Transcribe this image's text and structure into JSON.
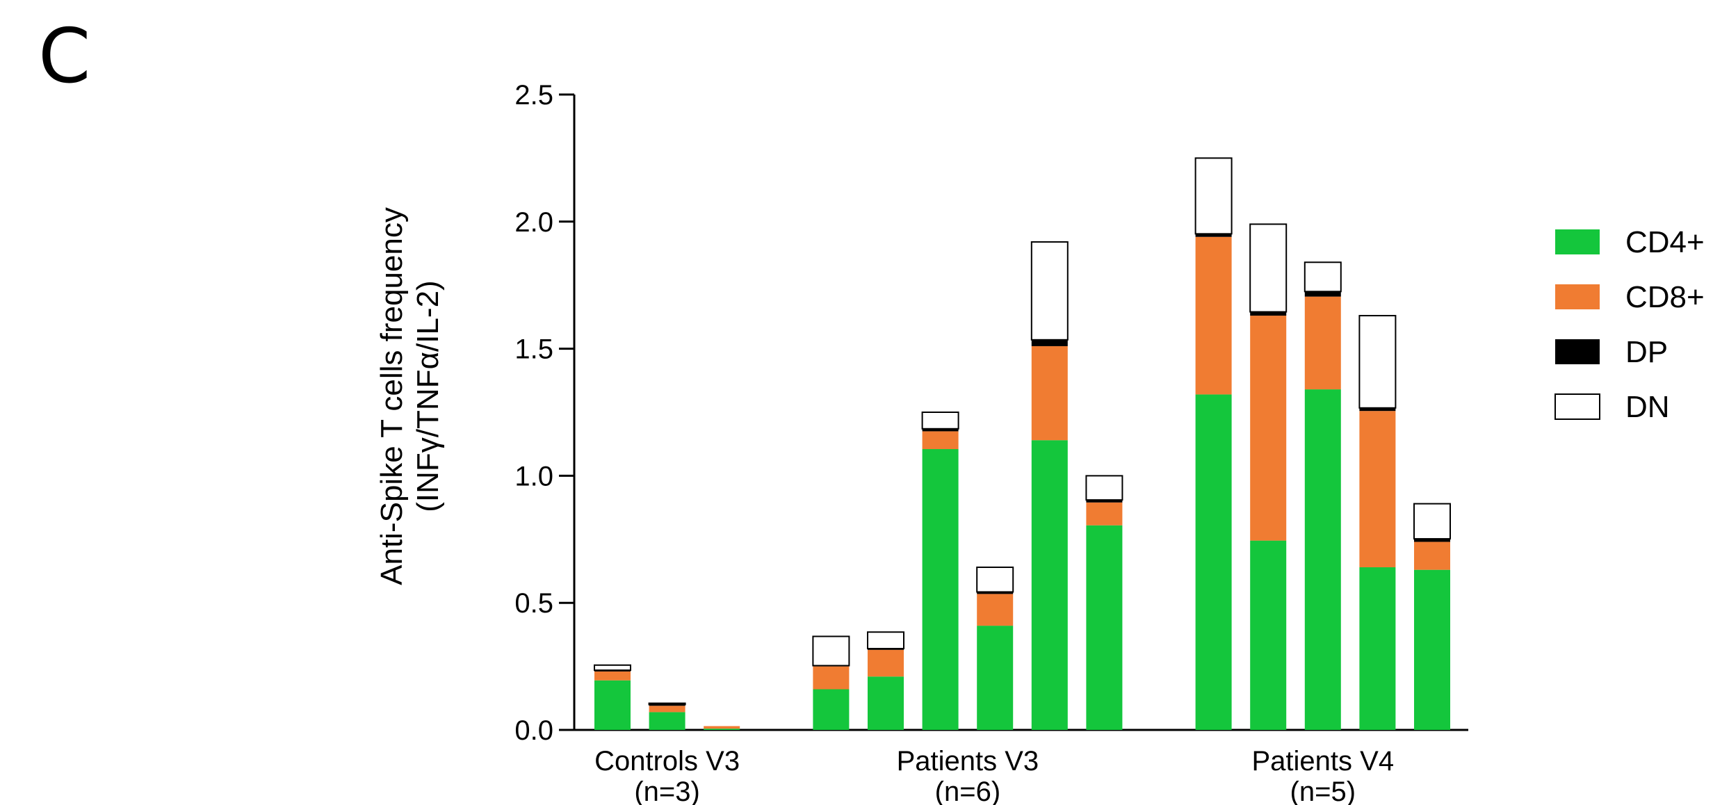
{
  "panel_letter": "C",
  "chart_data": {
    "type": "bar",
    "stacked": true,
    "title": "",
    "ylabel_lines": [
      "Anti-Spike T cells frequency",
      "(INFγ/TNFα/IL-2)"
    ],
    "ylim": [
      0,
      2.5
    ],
    "yticks": [
      "0.0",
      "0.5",
      "1.0",
      "1.5",
      "2.0",
      "2.5"
    ],
    "ytick_values": [
      0,
      0.5,
      1.0,
      1.5,
      2.0,
      2.5
    ],
    "groups": [
      {
        "label_lines": [
          "Controls V3",
          "(n=3)"
        ],
        "bar_count": 3
      },
      {
        "label_lines": [
          "Patients V3",
          "(n=6)"
        ],
        "bar_count": 6
      },
      {
        "label_lines": [
          "Patients V4",
          "(n=5)"
        ],
        "bar_count": 5
      }
    ],
    "series": [
      {
        "name": "CD4+",
        "color": "#14c63c",
        "values": [
          0.195,
          0.07,
          0.005,
          0.16,
          0.21,
          1.105,
          0.41,
          1.14,
          0.805,
          1.32,
          0.745,
          1.34,
          0.64,
          0.63
        ]
      },
      {
        "name": "CD8+",
        "color": "#f07c32",
        "values": [
          0.035,
          0.025,
          0.01,
          0.09,
          0.105,
          0.07,
          0.125,
          0.37,
          0.09,
          0.62,
          0.885,
          0.365,
          0.615,
          0.11
        ]
      },
      {
        "name": "DP",
        "color": "#000000",
        "values": [
          0.005,
          0.005,
          0.0,
          0.003,
          0.005,
          0.01,
          0.008,
          0.025,
          0.01,
          0.012,
          0.015,
          0.02,
          0.012,
          0.012
        ]
      },
      {
        "name": "DN",
        "color": "#ffffff",
        "values": [
          0.02,
          0.005,
          0.0,
          0.115,
          0.065,
          0.065,
          0.097,
          0.385,
          0.095,
          0.298,
          0.345,
          0.115,
          0.363,
          0.138
        ]
      }
    ],
    "legend_position": "right",
    "grid": false
  }
}
